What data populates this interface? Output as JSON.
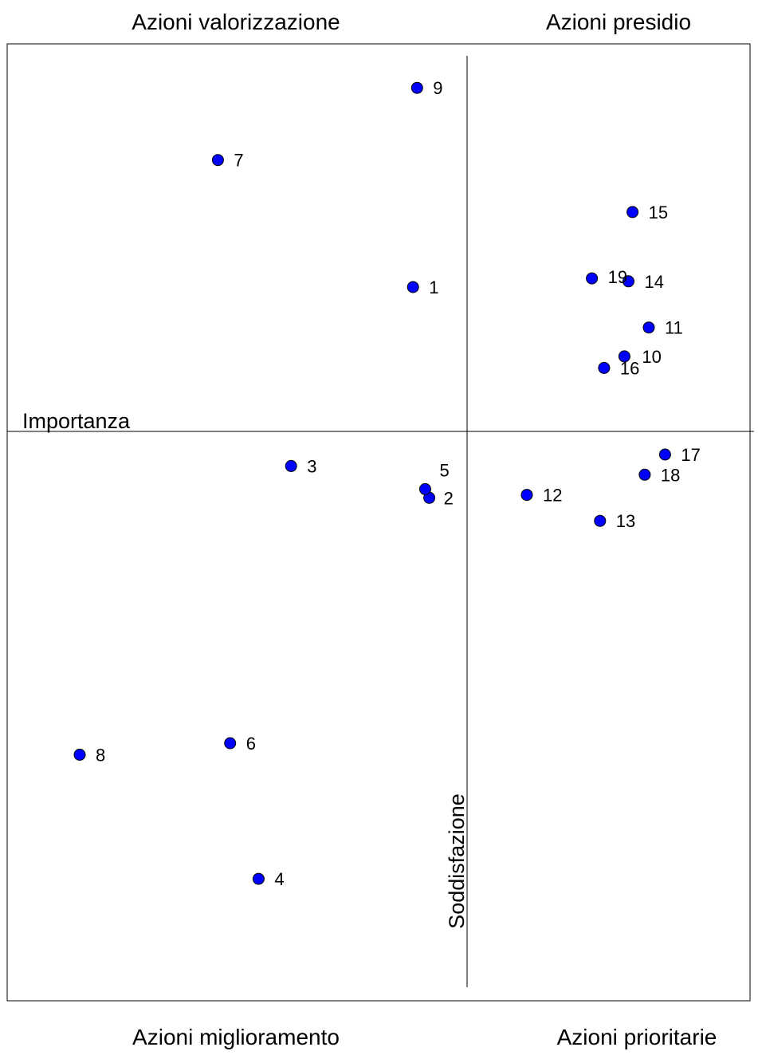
{
  "chart_data": {
    "type": "scatter",
    "title": "",
    "xlabel": "Soddisfazione",
    "ylabel": "Importanza",
    "quadrants": {
      "top_left": "Azioni valorizzazione",
      "top_right": "Azioni presidio",
      "bottom_left": "Azioni miglioramento",
      "bottom_right": "Azioni prioritarie"
    },
    "grid": false,
    "legend": "none",
    "marker_color": "#0000ff",
    "marker_edge_color": "#000000",
    "points": [
      {
        "label": "1",
        "x": 0.82,
        "y": 0.5
      },
      {
        "label": "2",
        "x": 0.86,
        "y": -0.23
      },
      {
        "label": "3",
        "x": 0.52,
        "y": -0.12
      },
      {
        "label": "4",
        "x": 0.44,
        "y": -1.55
      },
      {
        "label": "5",
        "x": 0.85,
        "y": -0.2
      },
      {
        "label": "6",
        "x": 0.37,
        "y": -1.08
      },
      {
        "label": "7",
        "x": 0.34,
        "y": 0.94
      },
      {
        "label": "8",
        "x": 0.0,
        "y": -1.12
      },
      {
        "label": "9",
        "x": 0.83,
        "y": 1.19
      },
      {
        "label": "10",
        "x": 1.34,
        "y": 0.26
      },
      {
        "label": "11",
        "x": 1.4,
        "y": 0.36
      },
      {
        "label": "12",
        "x": 1.1,
        "y": -0.22
      },
      {
        "label": "13",
        "x": 1.28,
        "y": -0.31
      },
      {
        "label": "14",
        "x": 1.35,
        "y": 0.52
      },
      {
        "label": "15",
        "x": 1.36,
        "y": 0.76
      },
      {
        "label": "16",
        "x": 1.29,
        "y": 0.22
      },
      {
        "label": "17",
        "x": 1.44,
        "y": -0.08
      },
      {
        "label": "18",
        "x": 1.39,
        "y": -0.15
      },
      {
        "label": "19",
        "x": 1.26,
        "y": 0.53
      }
    ]
  }
}
